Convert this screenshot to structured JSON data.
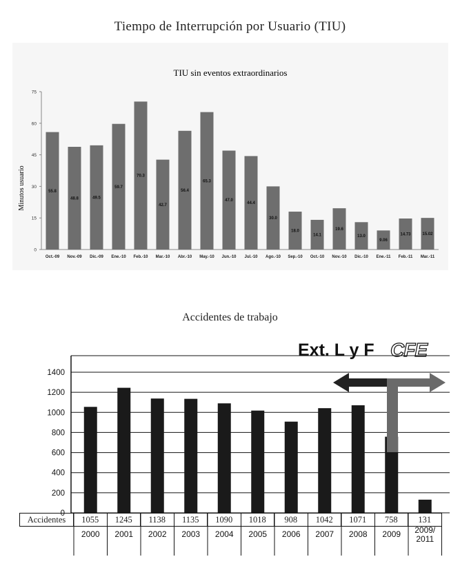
{
  "page_title": "Tiempo de Interrupción por Usuario (TIU)",
  "chart_data": [
    {
      "type": "bar",
      "title": "TIU sin eventos extraordinarios",
      "ylabel": "Minutos usuario",
      "xlabel": "",
      "ylim": [
        0,
        75
      ],
      "yticks": [
        0,
        15,
        30,
        45,
        60,
        75
      ],
      "grid": false,
      "legend": "none",
      "bar_color": "#6e6e6e",
      "categories": [
        "Oct.-09",
        "Nov.-09",
        "Dic.-09",
        "Ene.-10",
        "Feb.-10",
        "Mar.-10",
        "Abr.-10",
        "May.-10",
        "Jun.-10",
        "Jul.-10",
        "Ago.-10",
        "Sep.-10",
        "Oct.-10",
        "Nov.-10",
        "Dic.-10",
        "Ene.-11",
        "Feb.-11",
        "Mar.-11"
      ],
      "values": [
        55.8,
        48.8,
        49.5,
        59.7,
        70.3,
        42.7,
        56.4,
        65.3,
        47.0,
        44.4,
        30.0,
        18.0,
        14.1,
        19.6,
        13.0,
        9.06,
        14.73,
        15.02
      ],
      "data_labels": [
        "55.8",
        "48.8",
        "49.5",
        "59.7",
        "70.3",
        "42.7",
        "56.4",
        "65.3",
        "47.0",
        "44.4",
        "30.0",
        "18.0",
        "14.1",
        "19.6",
        "13.0",
        "9.06",
        "14.73",
        "15.02"
      ]
    },
    {
      "type": "bar",
      "title": "Accidentes de trabajo",
      "xlabel": "",
      "ylabel": "",
      "ylim": [
        0,
        1400
      ],
      "yticks": [
        0,
        200,
        400,
        600,
        800,
        1000,
        1200,
        1400
      ],
      "grid": true,
      "legend": "none",
      "bar_color": "#1a1a1a",
      "categories": [
        "2000",
        "2001",
        "2002",
        "2003",
        "2004",
        "2005",
        "2006",
        "2007",
        "2008",
        "2009",
        "2009/2011"
      ],
      "category_lines": [
        [
          "2000"
        ],
        [
          "2001"
        ],
        [
          "2002"
        ],
        [
          "2003"
        ],
        [
          "2004"
        ],
        [
          "2005"
        ],
        [
          "2006"
        ],
        [
          "2007"
        ],
        [
          "2008"
        ],
        [
          "2009"
        ],
        [
          "2009/",
          "2011"
        ]
      ],
      "values": [
        1055,
        1245,
        1138,
        1135,
        1090,
        1018,
        908,
        1042,
        1071,
        758,
        131
      ],
      "table_row_label": "Accidentes",
      "table_values": [
        "1055",
        "1245",
        "1138",
        "1135",
        "1090",
        "1018",
        "908",
        "1042",
        "1071",
        "758",
        "131"
      ],
      "annotations": {
        "brand_text": "Ext. L y F",
        "logo_text": "CFE",
        "arrow_left_color": "#222222",
        "arrow_right_color": "#6a6a6a"
      }
    }
  ]
}
